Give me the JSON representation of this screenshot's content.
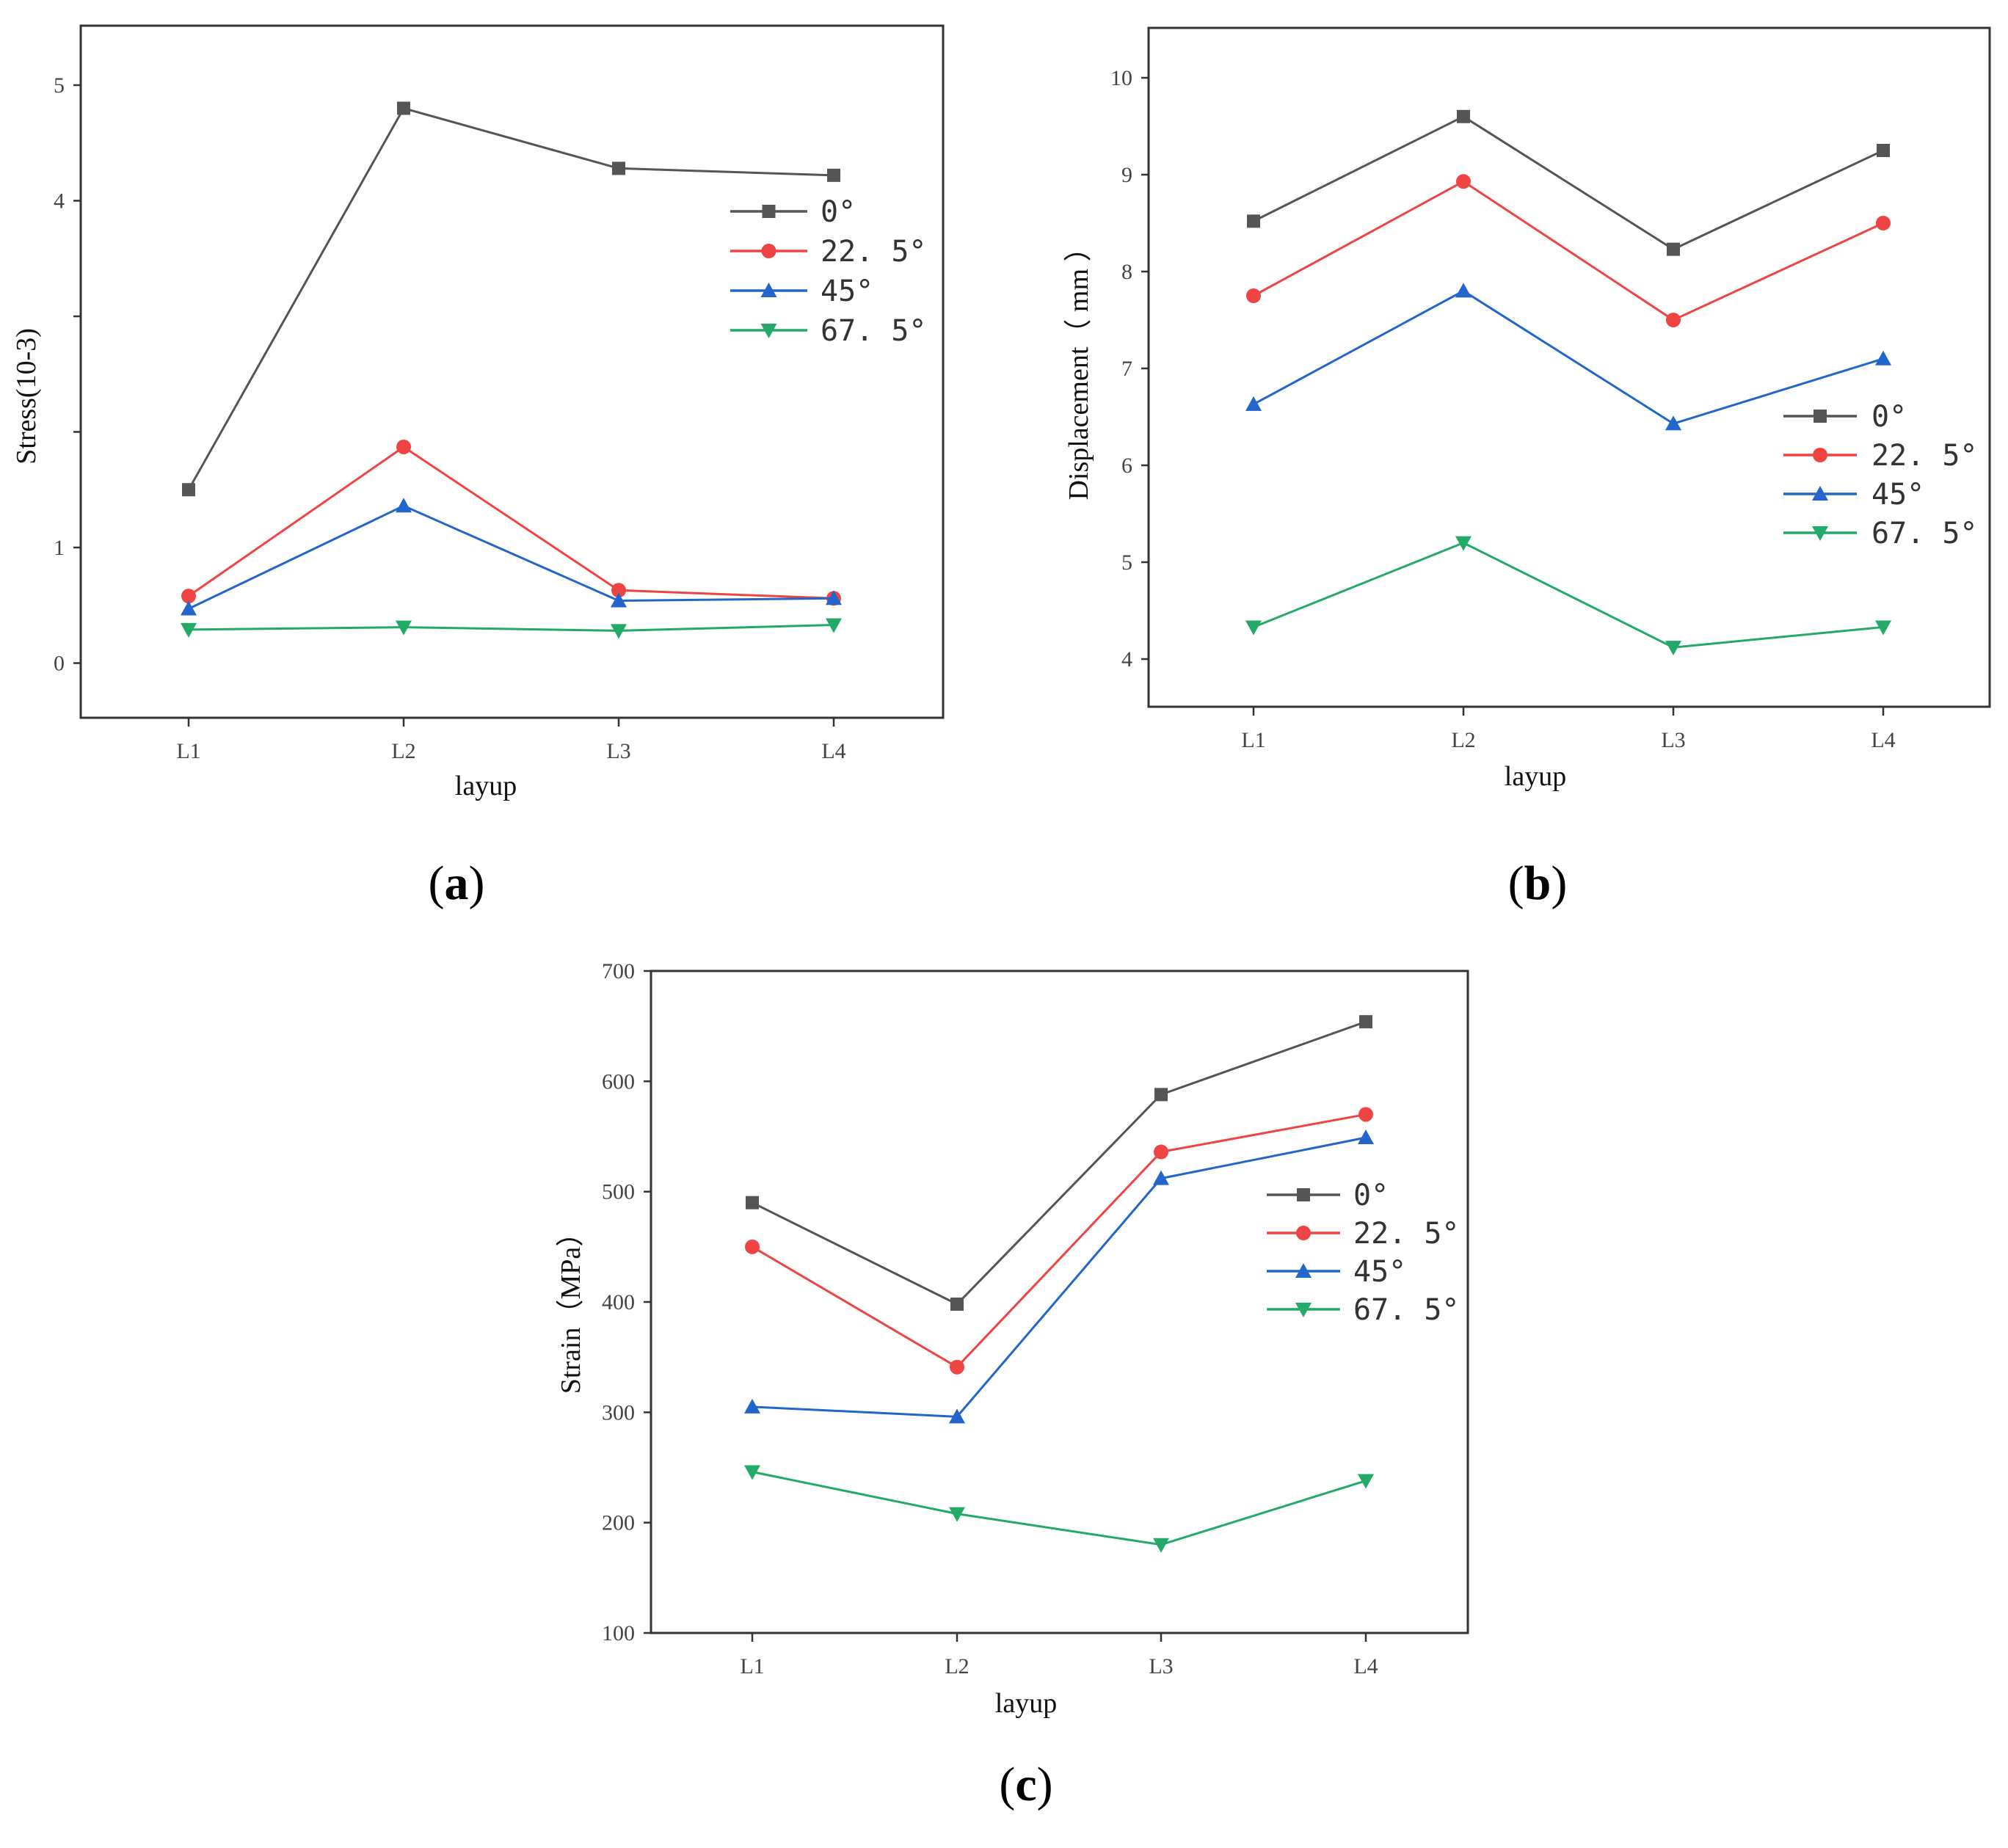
{
  "chart_data": [
    {
      "type": "line",
      "panel_label": "a",
      "xlabel": "layup",
      "ylabel": "Stress(10-3)",
      "categories": [
        "L1",
        "L2",
        "L3",
        "L4"
      ],
      "ylim": [
        -0.5,
        5.5
      ],
      "yticks": [
        0,
        1,
        4,
        5
      ],
      "ytick_labels": [
        "0",
        "1",
        "4",
        "5"
      ],
      "ytick_marks": [
        0,
        1,
        2,
        3,
        4,
        5
      ],
      "legend_position": "upper-right",
      "series": [
        {
          "name": "0°",
          "legend_label": "0°",
          "color": "#555555",
          "marker": "square",
          "values": [
            1.5,
            4.8,
            4.28,
            4.22
          ]
        },
        {
          "name": "22.5°",
          "legend_label": "22. 5°",
          "color": "#ee4444",
          "marker": "circle",
          "values": [
            0.58,
            1.87,
            0.63,
            0.56
          ]
        },
        {
          "name": "45°",
          "legend_label": "45°",
          "color": "#2266cc",
          "marker": "triangle-up",
          "values": [
            0.47,
            1.36,
            0.54,
            0.56
          ]
        },
        {
          "name": "67.5°",
          "legend_label": "67. 5°",
          "color": "#22aa66",
          "marker": "triangle-down",
          "values": [
            0.29,
            0.31,
            0.28,
            0.33
          ]
        }
      ]
    },
    {
      "type": "line",
      "panel_label": "b",
      "xlabel": "layup",
      "ylabel": "Displacement（ mm ）",
      "categories": [
        "L1",
        "L2",
        "L3",
        "L4"
      ],
      "ylim": [
        3.5,
        10.5
      ],
      "yticks": [
        4,
        5,
        6,
        7,
        8,
        9,
        10
      ],
      "ytick_labels": [
        "4",
        "5",
        "6",
        "7",
        "8",
        "9",
        "10"
      ],
      "ytick_marks": [
        4,
        5,
        6,
        7,
        8,
        9,
        10
      ],
      "legend_position": "right",
      "series": [
        {
          "name": "0°",
          "legend_label": "0°",
          "color": "#555555",
          "marker": "square",
          "values": [
            8.52,
            9.6,
            8.23,
            9.25
          ]
        },
        {
          "name": "22.5°",
          "legend_label": "22. 5°",
          "color": "#ee4444",
          "marker": "circle",
          "values": [
            7.75,
            8.93,
            7.5,
            8.5
          ]
        },
        {
          "name": "45°",
          "legend_label": "45°",
          "color": "#2266cc",
          "marker": "triangle-up",
          "values": [
            6.63,
            7.8,
            6.43,
            7.1
          ]
        },
        {
          "name": "67.5°",
          "legend_label": "67. 5°",
          "color": "#22aa66",
          "marker": "triangle-down",
          "values": [
            4.33,
            5.2,
            4.12,
            4.33
          ]
        }
      ]
    },
    {
      "type": "line",
      "panel_label": "c",
      "xlabel": "layup",
      "ylabel": "Strain（MPa）",
      "categories": [
        "L1",
        "L2",
        "L3",
        "L4"
      ],
      "ylim": [
        100,
        700
      ],
      "yticks": [
        100,
        200,
        300,
        400,
        500,
        600,
        700
      ],
      "ytick_labels": [
        "100",
        "200",
        "300",
        "400",
        "500",
        "600",
        "700"
      ],
      "ytick_marks": [
        100,
        200,
        300,
        400,
        500,
        600,
        700
      ],
      "legend_position": "right",
      "series": [
        {
          "name": "0°",
          "legend_label": "0°",
          "color": "#555555",
          "marker": "square",
          "values": [
            490,
            398,
            588,
            654
          ]
        },
        {
          "name": "22.5°",
          "legend_label": "22. 5°",
          "color": "#ee4444",
          "marker": "circle",
          "values": [
            450,
            341,
            536,
            570
          ]
        },
        {
          "name": "45°",
          "legend_label": "45°",
          "color": "#2266cc",
          "marker": "triangle-up",
          "values": [
            305,
            296,
            512,
            549
          ]
        },
        {
          "name": "67.5°",
          "legend_label": "67. 5°",
          "color": "#22aa66",
          "marker": "triangle-down",
          "values": [
            246,
            208,
            180,
            238
          ]
        }
      ]
    }
  ]
}
